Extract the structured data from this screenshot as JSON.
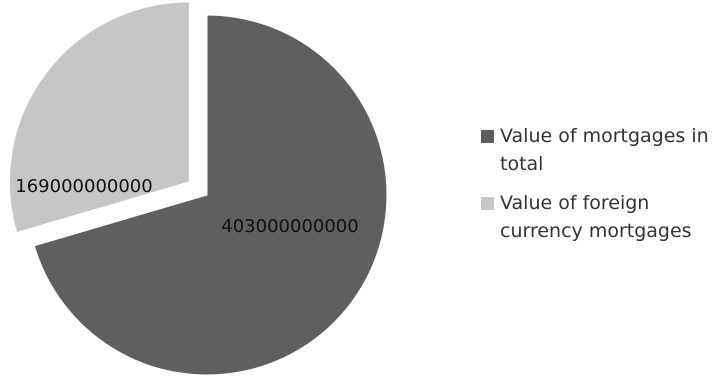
{
  "chart_data": {
    "type": "pie",
    "title": "",
    "exploded": true,
    "legend_position": "right",
    "series": [
      {
        "name": "Value of mortgages in total",
        "value": 403000000000,
        "label": "403000000000",
        "color": "#5f5f5f"
      },
      {
        "name": "Value of foreign currency mortgages",
        "value": 169000000000,
        "label": "169000000000",
        "color": "#c6c6c6"
      }
    ]
  }
}
